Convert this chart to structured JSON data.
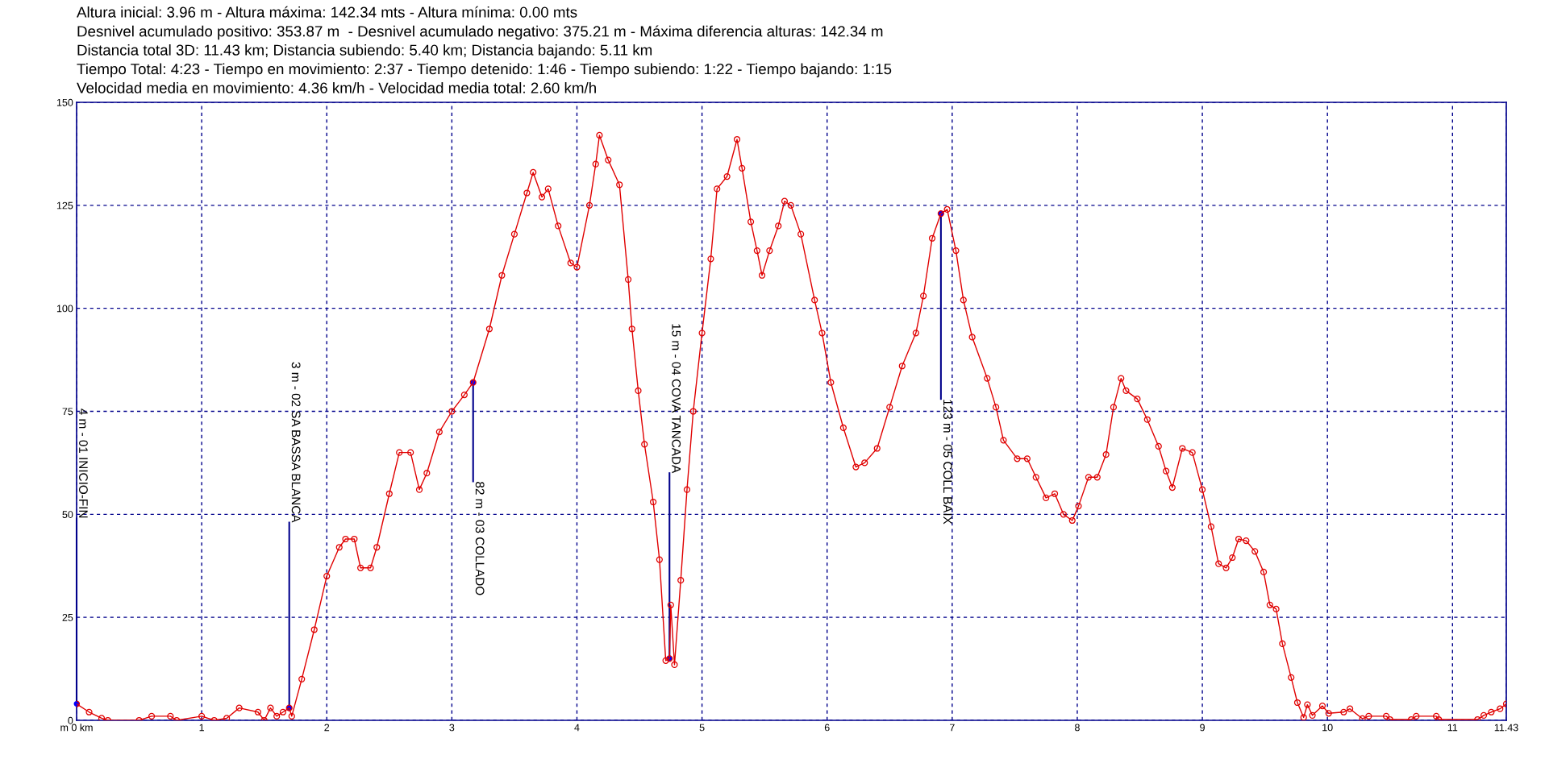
{
  "chart_data": {
    "type": "line",
    "annotations": [
      "Altura inicial: 3.96 m - Altura máxima: 142.34 mts - Altura mínima: 0.00 mts",
      "Desnivel acumulado positivo: 353.87 m  - Desnivel acumulado negativo: 375.21 m - Máxima diferencia alturas: 142.34 m",
      "Distancia total 3D: 11.43 km; Distancia subiendo: 5.40 km; Distancia bajando: 5.11 km",
      "Tiempo Total: 4:23 - Tiempo en movimiento: 2:37 - Tiempo detenido: 1:46 - Tiempo subiendo: 1:22 - Tiempo bajando: 1:15",
      "Velocidad media en movimiento: 4.36 km/h - Velocidad media total: 2.60 km/h",
      {
        "text": "4 m - 01 INICIO-FIN",
        "x": 0,
        "y": 4
      },
      {
        "text": "3 m - 02 SA BASSA BLANCA",
        "x": 1.7,
        "y": 3
      },
      {
        "text": "82 m - 03 COLLADO",
        "x": 3.17,
        "y": 82
      },
      {
        "text": "15 m - 04 COVA TANCADA",
        "x": 4.74,
        "y": 15
      },
      {
        "text": "123 m - 05 COLL BAIX",
        "x": 6.91,
        "y": 123
      }
    ],
    "x": [
      0,
      0.1,
      0.2,
      0.25,
      0.5,
      0.6,
      0.75,
      0.8,
      1.0,
      1.1,
      1.2,
      1.3,
      1.45,
      1.5,
      1.55,
      1.6,
      1.65,
      1.7,
      1.72,
      1.8,
      1.9,
      2.0,
      2.1,
      2.15,
      2.22,
      2.27,
      2.35,
      2.4,
      2.5,
      2.58,
      2.67,
      2.74,
      2.8,
      2.9,
      3.0,
      3.1,
      3.17,
      3.3,
      3.4,
      3.5,
      3.6,
      3.65,
      3.72,
      3.77,
      3.85,
      3.95,
      4.0,
      4.1,
      4.15,
      4.18,
      4.25,
      4.34,
      4.41,
      4.44,
      4.49,
      4.54,
      4.61,
      4.66,
      4.71,
      4.74,
      4.75,
      4.78,
      4.83,
      4.88,
      4.93,
      5.0,
      5.07,
      5.12,
      5.2,
      5.28,
      5.32,
      5.39,
      5.44,
      5.48,
      5.54,
      5.61,
      5.66,
      5.71,
      5.79,
      5.9,
      5.96,
      6.03,
      6.13,
      6.23,
      6.3,
      6.4,
      6.5,
      6.6,
      6.71,
      6.77,
      6.84,
      6.91,
      6.96,
      7.03,
      7.09,
      7.16,
      7.28,
      7.35,
      7.41,
      7.52,
      7.6,
      7.67,
      7.75,
      7.82,
      7.89,
      7.96,
      8.01,
      8.09,
      8.16,
      8.23,
      8.29,
      8.35,
      8.39,
      8.48,
      8.56,
      8.65,
      8.71,
      8.76,
      8.84,
      8.92,
      9.0,
      9.07,
      9.13,
      9.19,
      9.24,
      9.29,
      9.35,
      9.42,
      9.49,
      9.54,
      9.59,
      9.64,
      9.71,
      9.76,
      9.81,
      9.84,
      9.88,
      9.96,
      10.01,
      10.13,
      10.18,
      10.28,
      10.33,
      10.47,
      10.5,
      10.67,
      10.71,
      10.87,
      10.89,
      11.2,
      11.25,
      11.31,
      11.38,
      11.43
    ],
    "series": [
      {
        "color": "#e00000",
        "values": [
          4,
          2,
          0.5,
          0,
          0,
          1,
          1,
          0,
          1,
          0,
          0.5,
          3,
          2,
          0,
          3,
          1,
          2,
          3,
          1,
          10,
          22,
          35,
          42,
          44,
          44,
          37,
          37,
          42,
          55,
          65,
          65,
          56,
          60,
          70,
          75,
          79,
          82,
          95,
          108,
          118,
          128,
          133,
          127,
          129,
          120,
          111,
          110,
          125,
          135,
          142,
          136,
          130,
          107,
          95,
          80,
          67,
          53,
          39,
          14.5,
          15,
          28,
          13.5,
          34,
          56,
          75,
          94,
          112,
          129,
          132,
          141,
          134,
          121,
          114,
          108,
          114,
          120,
          126,
          125,
          118,
          102,
          94,
          82,
          71,
          61.5,
          62.5,
          66,
          76,
          86,
          94,
          103,
          117,
          123,
          124,
          114,
          102,
          93,
          83,
          76,
          68,
          63.5,
          63.5,
          59,
          54,
          55,
          50,
          48.5,
          52,
          59,
          59,
          64.5,
          76,
          83,
          80,
          78,
          73,
          66.5,
          60.5,
          56.5,
          66,
          65,
          56,
          47,
          38,
          37,
          39.5,
          44,
          43.6,
          41,
          36,
          28,
          27,
          18.6,
          10.4,
          4.3,
          0.7,
          3.8,
          1.2,
          3.5,
          1.7,
          2,
          2.8,
          0.4,
          1,
          1,
          0.2,
          0.2,
          1,
          1,
          0.2,
          0.2,
          1.2,
          2,
          2.8,
          4
        ]
      }
    ],
    "xlim": [
      0,
      11.43
    ],
    "ylim": [
      0,
      150
    ],
    "xticks": [
      {
        "value": 0,
        "label": "m 0 km"
      },
      1,
      2,
      3,
      4,
      5,
      6,
      7,
      8,
      9,
      10,
      11,
      11.43
    ],
    "yticks": [
      0,
      25,
      50,
      75,
      100,
      125,
      150
    ],
    "grid": true,
    "marker": "circle",
    "line_style": "solid"
  }
}
